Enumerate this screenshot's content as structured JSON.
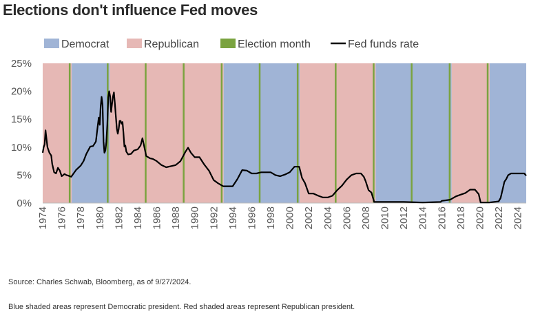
{
  "title": "Elections don't influence Fed moves",
  "footnotes": {
    "source": "Source: Charles Schwab, Bloomberg, as of 9/27/2024.",
    "shading": "Blue shaded areas represent Democratic president. Red shaded areas represent Republican president."
  },
  "colors": {
    "democrat": "#a0b4d6",
    "republican": "#e6b8b5",
    "election": "#7aa33f",
    "rate": "#000000"
  },
  "chart_data": {
    "type": "line",
    "xlim": [
      1974.0,
      2024.9
    ],
    "ylim": [
      0,
      25
    ],
    "y_ticks": [
      0,
      5,
      10,
      15,
      20,
      25
    ],
    "y_tick_labels": [
      "0%",
      "5%",
      "10%",
      "15%",
      "20%",
      "25%"
    ],
    "x_ticks": [
      1974,
      1976,
      1978,
      1980,
      1982,
      1984,
      1986,
      1988,
      1990,
      1992,
      1994,
      1996,
      1998,
      2000,
      2002,
      2004,
      2006,
      2008,
      2010,
      2012,
      2014,
      2016,
      2018,
      2020,
      2022,
      2024
    ],
    "x_tick_labels": [
      "1974",
      "1976",
      "1978",
      "1980",
      "1982",
      "1984",
      "1986",
      "1988",
      "1990",
      "1992",
      "1994",
      "1996",
      "1998",
      "2000",
      "2002",
      "2004",
      "2006",
      "2008",
      "2010",
      "2012",
      "2014",
      "2016",
      "2018",
      "2020",
      "2022",
      "2024"
    ],
    "grid": false,
    "legend_position": "top",
    "legend": [
      {
        "label": "Democrat",
        "kind": "swatch",
        "color_key": "democrat"
      },
      {
        "label": "Republican",
        "kind": "swatch",
        "color_key": "republican"
      },
      {
        "label": "Election month",
        "kind": "swatch",
        "color_key": "election"
      },
      {
        "label": "Fed funds rate",
        "kind": "line",
        "color_key": "rate"
      }
    ],
    "party_shading": [
      {
        "party": "republican",
        "start": 1974.0,
        "end": 1977.05
      },
      {
        "party": "democrat",
        "start": 1977.05,
        "end": 1981.05
      },
      {
        "party": "republican",
        "start": 1981.05,
        "end": 1993.05
      },
      {
        "party": "democrat",
        "start": 1993.05,
        "end": 2001.05
      },
      {
        "party": "republican",
        "start": 2001.05,
        "end": 2009.05
      },
      {
        "party": "democrat",
        "start": 2009.05,
        "end": 2017.05
      },
      {
        "party": "republican",
        "start": 2017.05,
        "end": 2021.05
      },
      {
        "party": "democrat",
        "start": 2021.05,
        "end": 2024.9
      }
    ],
    "election_months": [
      1976.84,
      1980.84,
      1984.84,
      1988.84,
      1992.84,
      1996.84,
      2000.84,
      2004.84,
      2008.84,
      2012.84,
      2016.84,
      2020.84
    ],
    "series": [
      {
        "name": "Fed funds rate",
        "x": [
          1974.0,
          1974.1,
          1974.2,
          1974.3,
          1974.4,
          1974.5,
          1974.6,
          1974.7,
          1974.9,
          1975.0,
          1975.2,
          1975.4,
          1975.6,
          1975.8,
          1976.0,
          1976.3,
          1976.5,
          1976.7,
          1977.0,
          1977.5,
          1978.0,
          1978.3,
          1978.6,
          1979.0,
          1979.3,
          1979.6,
          1979.8,
          1979.9,
          1980.0,
          1980.1,
          1980.2,
          1980.3,
          1980.4,
          1980.5,
          1980.6,
          1980.7,
          1980.8,
          1980.9,
          1981.0,
          1981.1,
          1981.2,
          1981.3,
          1981.4,
          1981.5,
          1981.6,
          1981.7,
          1981.8,
          1981.9,
          1982.0,
          1982.1,
          1982.2,
          1982.3,
          1982.4,
          1982.5,
          1982.6,
          1982.7,
          1982.8,
          1983.0,
          1983.3,
          1983.6,
          1984.0,
          1984.3,
          1984.5,
          1984.7,
          1984.9,
          1985.0,
          1985.3,
          1985.6,
          1986.0,
          1986.5,
          1987.0,
          1987.5,
          1988.0,
          1988.5,
          1989.0,
          1989.3,
          1989.6,
          1990.0,
          1990.5,
          1991.0,
          1991.5,
          1992.0,
          1992.5,
          1993.0,
          1993.5,
          1994.0,
          1994.5,
          1995.0,
          1995.5,
          1996.0,
          1996.5,
          1997.0,
          1997.5,
          1998.0,
          1998.5,
          1999.0,
          1999.5,
          2000.0,
          2000.5,
          2001.0,
          2001.3,
          2001.6,
          2002.0,
          2002.5,
          2003.0,
          2003.5,
          2004.0,
          2004.5,
          2005.0,
          2005.5,
          2006.0,
          2006.5,
          2007.0,
          2007.5,
          2007.8,
          2008.0,
          2008.3,
          2008.6,
          2008.9,
          2009.0,
          2010.0,
          2012.0,
          2014.0,
          2015.9,
          2016.0,
          2016.9,
          2017.2,
          2017.5,
          2018.0,
          2018.5,
          2019.0,
          2019.5,
          2019.9,
          2020.1,
          2020.2,
          2021.0,
          2022.0,
          2022.2,
          2022.4,
          2022.6,
          2022.8,
          2023.0,
          2023.3,
          2023.6,
          2024.0,
          2024.5,
          2024.7,
          2024.9
        ],
        "y": [
          9.0,
          10.0,
          10.5,
          13.0,
          11.5,
          10.0,
          9.5,
          9.0,
          8.5,
          7.0,
          5.5,
          5.3,
          6.3,
          5.8,
          4.8,
          5.2,
          5.0,
          4.9,
          4.7,
          5.9,
          6.7,
          7.5,
          8.8,
          10.1,
          10.2,
          11.0,
          13.9,
          15.3,
          14.0,
          17.2,
          19.0,
          17.6,
          11.0,
          9.0,
          9.4,
          10.9,
          14.0,
          18.9,
          20.0,
          19.1,
          16.3,
          17.8,
          19.1,
          19.8,
          17.8,
          15.5,
          13.3,
          12.4,
          13.2,
          14.7,
          14.7,
          14.2,
          14.5,
          12.6,
          10.1,
          10.3,
          9.2,
          8.7,
          8.8,
          9.4,
          9.6,
          10.3,
          11.6,
          10.0,
          8.4,
          8.3,
          8.0,
          7.9,
          7.5,
          6.8,
          6.4,
          6.6,
          6.8,
          7.5,
          9.1,
          9.9,
          9.0,
          8.2,
          8.2,
          6.9,
          5.8,
          4.1,
          3.5,
          3.0,
          3.0,
          3.0,
          4.3,
          5.9,
          5.8,
          5.3,
          5.3,
          5.5,
          5.5,
          5.5,
          5.0,
          4.8,
          5.1,
          5.5,
          6.5,
          6.5,
          4.5,
          3.6,
          1.7,
          1.7,
          1.3,
          1.0,
          1.0,
          1.3,
          2.3,
          3.1,
          4.2,
          5.0,
          5.3,
          5.3,
          4.7,
          3.9,
          2.3,
          1.9,
          0.2,
          0.2,
          0.2,
          0.2,
          0.1,
          0.2,
          0.4,
          0.6,
          0.9,
          1.2,
          1.5,
          1.8,
          2.4,
          2.4,
          1.6,
          0.1,
          0.1,
          0.1,
          0.3,
          0.9,
          2.3,
          3.8,
          4.3,
          5.0,
          5.3,
          5.3,
          5.3,
          5.3,
          5.3,
          4.9
        ]
      }
    ]
  }
}
